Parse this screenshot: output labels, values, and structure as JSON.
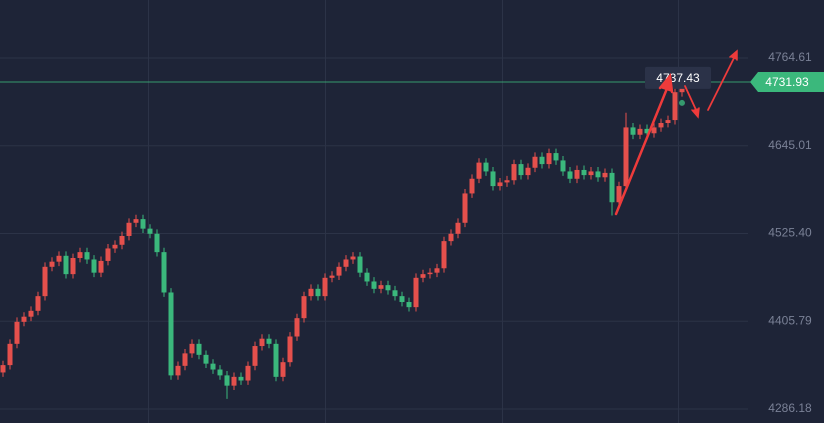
{
  "chart_data": {
    "type": "candlestick",
    "up_color": "#e5504c",
    "down_color": "#3bb87c",
    "grid": true,
    "ylim": [
      4267.1,
      4843.66
    ],
    "yticks": [
      4286.18,
      4405.79,
      {
        "value": 4525.4,
        "label": "4525.40"
      },
      4645.01,
      4764.61
    ],
    "last_price": 4731.93,
    "crosshair_price": 4737.43,
    "open": [
      4336,
      4346,
      4375,
      4405,
      4412,
      4420,
      4440,
      4480,
      4487,
      4495,
      4470,
      4492,
      4500,
      4490,
      4472,
      4488,
      4505,
      4510,
      4522,
      4540,
      4545,
      4532,
      4525,
      4500,
      4445,
      4332,
      4345,
      4362,
      4375,
      4360,
      4348,
      4340,
      4332,
      4318,
      4330,
      4325,
      4345,
      4372,
      4382,
      4375,
      4330,
      4350,
      4385,
      4410,
      4440,
      4450,
      4440,
      4465,
      4468,
      4480,
      4490,
      4494,
      4472,
      4460,
      4450,
      4455,
      4448,
      4440,
      4432,
      4425,
      4465,
      4470,
      4472,
      4478,
      4515,
      4525,
      4540,
      4580,
      4600,
      4622,
      4610,
      4590,
      4595,
      4598,
      4620,
      4605,
      4615,
      4630,
      4620,
      4635,
      4625,
      4610,
      4600,
      4612,
      4605,
      4610,
      4602,
      4608,
      4568,
      4590,
      4670,
      4660,
      4668,
      4662,
      4670,
      4676,
      4680,
      4718
    ],
    "high": [
      4352,
      4381,
      4411,
      4418,
      4426,
      4446,
      4486,
      4493,
      4501,
      4501,
      4498,
      4506,
      4506,
      4496,
      4494,
      4511,
      4516,
      4528,
      4546,
      4551,
      4551,
      4538,
      4531,
      4506,
      4451,
      4351,
      4368,
      4381,
      4381,
      4366,
      4354,
      4346,
      4338,
      4336,
      4336,
      4351,
      4378,
      4388,
      4388,
      4381,
      4356,
      4391,
      4416,
      4446,
      4456,
      4456,
      4471,
      4474,
      4486,
      4496,
      4500,
      4500,
      4478,
      4466,
      4461,
      4461,
      4454,
      4446,
      4438,
      4471,
      4476,
      4478,
      4484,
      4521,
      4531,
      4546,
      4586,
      4606,
      4628,
      4628,
      4616,
      4601,
      4604,
      4626,
      4626,
      4621,
      4636,
      4636,
      4641,
      4641,
      4631,
      4616,
      4618,
      4618,
      4616,
      4616,
      4614,
      4614,
      4596,
      4690,
      4676,
      4674,
      4674,
      4676,
      4682,
      4686,
      4724,
      4740
    ],
    "low": [
      4330,
      4340,
      4369,
      4399,
      4406,
      4414,
      4434,
      4474,
      4481,
      4464,
      4464,
      4486,
      4484,
      4466,
      4466,
      4482,
      4499,
      4504,
      4516,
      4534,
      4526,
      4519,
      4494,
      4439,
      4326,
      4326,
      4339,
      4356,
      4354,
      4342,
      4334,
      4326,
      4300,
      4312,
      4319,
      4319,
      4339,
      4366,
      4369,
      4324,
      4324,
      4344,
      4379,
      4404,
      4434,
      4434,
      4434,
      4459,
      4462,
      4474,
      4484,
      4466,
      4454,
      4444,
      4444,
      4442,
      4434,
      4426,
      4419,
      4419,
      4459,
      4464,
      4466,
      4472,
      4509,
      4519,
      4534,
      4574,
      4594,
      4604,
      4584,
      4584,
      4589,
      4592,
      4599,
      4599,
      4609,
      4614,
      4614,
      4619,
      4604,
      4594,
      4594,
      4599,
      4599,
      4596,
      4596,
      4550,
      4562,
      4584,
      4654,
      4654,
      4656,
      4656,
      4664,
      4670,
      4674,
      4712
    ],
    "close": [
      4346,
      4375,
      4405,
      4412,
      4420,
      4440,
      4480,
      4487,
      4495,
      4470,
      4492,
      4500,
      4490,
      4472,
      4488,
      4505,
      4510,
      4522,
      4540,
      4545,
      4532,
      4525,
      4500,
      4445,
      4332,
      4345,
      4362,
      4375,
      4360,
      4348,
      4340,
      4332,
      4318,
      4330,
      4325,
      4345,
      4372,
      4382,
      4375,
      4330,
      4350,
      4385,
      4410,
      4440,
      4450,
      4440,
      4465,
      4468,
      4480,
      4490,
      4494,
      4472,
      4460,
      4450,
      4455,
      4448,
      4440,
      4432,
      4425,
      4465,
      4470,
      4472,
      4478,
      4515,
      4525,
      4540,
      4580,
      4600,
      4622,
      4610,
      4590,
      4595,
      4598,
      4620,
      4605,
      4615,
      4630,
      4620,
      4635,
      4625,
      4610,
      4600,
      4612,
      4605,
      4610,
      4602,
      4608,
      4568,
      4590,
      4670,
      4660,
      4668,
      4662,
      4670,
      4676,
      4680,
      4718,
      4732
    ]
  }
}
